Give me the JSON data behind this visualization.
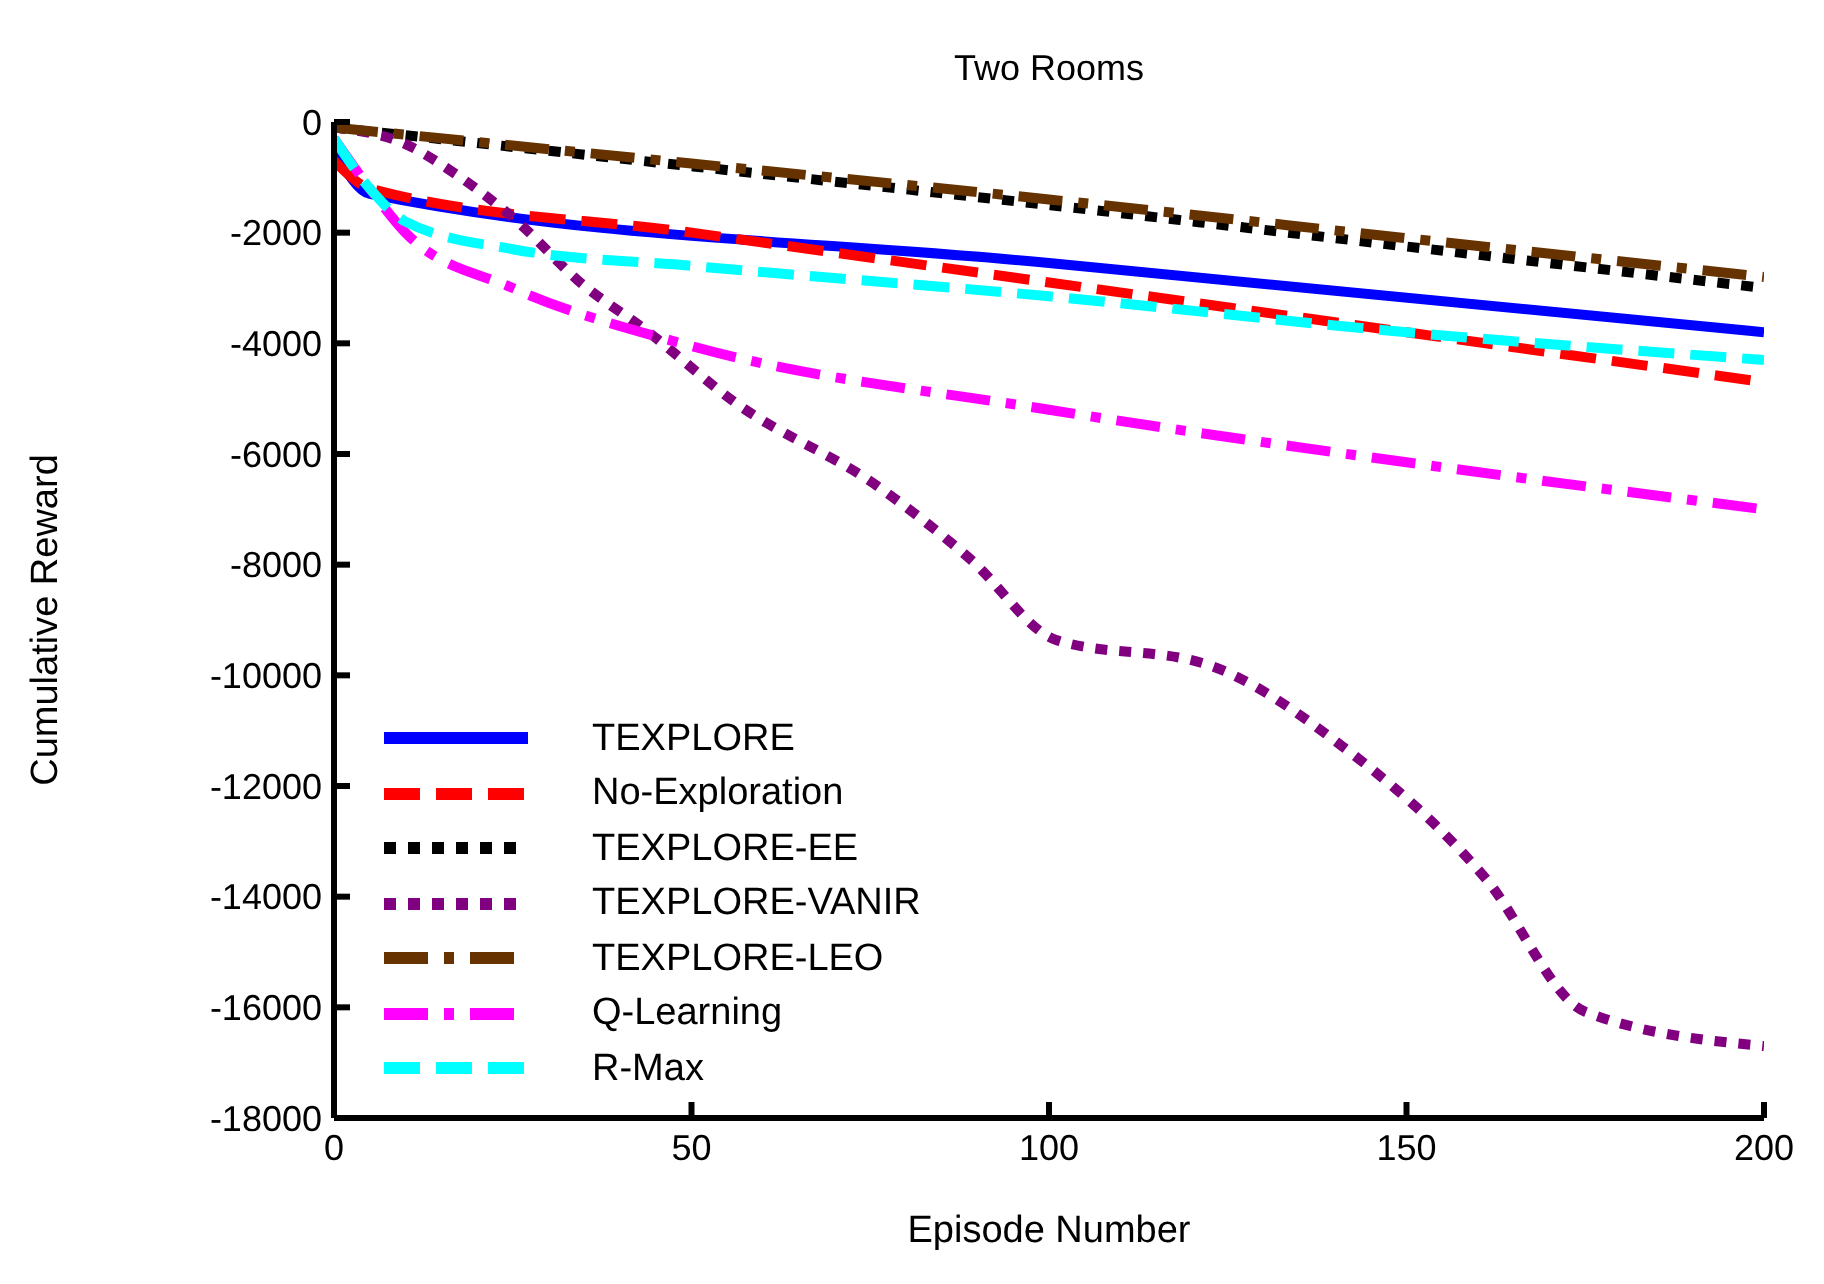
{
  "chart_data": {
    "type": "line",
    "title": "Two Rooms",
    "xlabel": "Episode Number",
    "ylabel": "Cumulative Reward",
    "xlim": [
      0,
      200
    ],
    "xticks": [
      0,
      50,
      100,
      150,
      200
    ],
    "ylim": [
      -18000,
      0
    ],
    "yticks": [
      -18000,
      -16000,
      -14000,
      -12000,
      -10000,
      -8000,
      -6000,
      -4000,
      -2000,
      0
    ],
    "legend": "bottom left",
    "marker": "none",
    "series": [
      {
        "name": "TEXPLORE",
        "color": "#0000ff",
        "line_style": "solid",
        "x": [
          0,
          5,
          100,
          200
        ],
        "values": [
          -500,
          -1300,
          -2550,
          -3800
        ]
      },
      {
        "name": "No-Exploration",
        "color": "#ff0000",
        "line_style": "dashed",
        "x": [
          0,
          5,
          50,
          100,
          150,
          200
        ],
        "values": [
          -700,
          -1200,
          -2000,
          -2900,
          -3800,
          -4700
        ]
      },
      {
        "name": "TEXPLORE-EE",
        "color": "#000000",
        "line_style": "dotted",
        "x": [
          0,
          50,
          100,
          150,
          200
        ],
        "values": [
          -100,
          -800,
          -1500,
          -2250,
          -3000
        ]
      },
      {
        "name": "TEXPLORE-VANIR",
        "color": "#800080",
        "line_style": "dotted",
        "x": [
          0,
          10,
          17,
          26,
          34,
          44,
          56,
          76,
          89,
          101,
          122,
          141,
          161,
          175,
          200
        ],
        "values": [
          -100,
          -400,
          -940,
          -1840,
          -2850,
          -3800,
          -5060,
          -6580,
          -7900,
          -9360,
          -9800,
          -11280,
          -13660,
          -16080,
          -16700
        ]
      },
      {
        "name": "TEXPLORE-LEO",
        "color": "#663300",
        "line_style": "dashdot",
        "x": [
          0,
          50,
          100,
          150,
          200
        ],
        "values": [
          -100,
          -750,
          -1400,
          -2100,
          -2800
        ]
      },
      {
        "name": "Q-Learning",
        "color": "#ff00ff",
        "line_style": "dashdot",
        "x": [
          0,
          5,
          10,
          25,
          50,
          100,
          150,
          200
        ],
        "values": [
          -300,
          -1200,
          -2000,
          -3000,
          -4050,
          -5200,
          -6150,
          -7000
        ]
      },
      {
        "name": "R-Max",
        "color": "#00ffff",
        "line_style": "dashed",
        "x": [
          0,
          5,
          10,
          25,
          50,
          100,
          150,
          200
        ],
        "values": [
          -300,
          -1200,
          -1800,
          -2300,
          -2600,
          -3150,
          -3800,
          -4300
        ]
      }
    ]
  }
}
